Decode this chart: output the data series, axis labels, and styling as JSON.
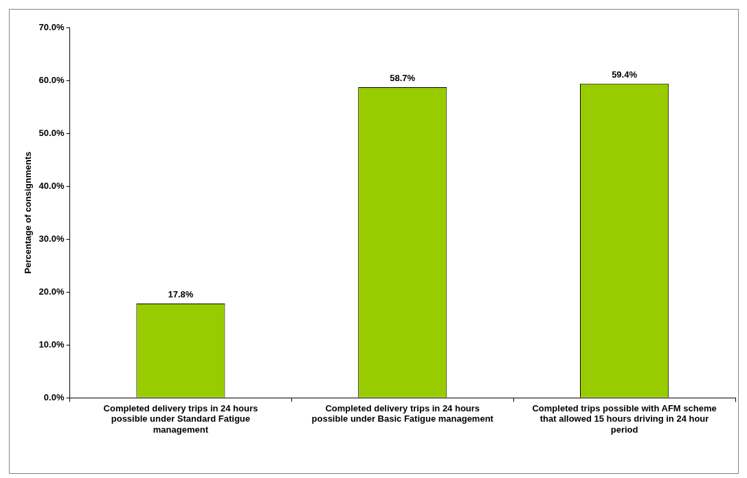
{
  "chart_data": {
    "type": "bar",
    "ylabel": "Percentage of consignments",
    "categories": [
      "Completed delivery trips in 24 hours possible under Standard Fatigue management",
      "Completed delivery trips in 24 hours possible under Basic Fatigue management",
      "Completed trips possible with AFM scheme that allowed 15 hours driving in 24 hour period"
    ],
    "values": [
      17.8,
      58.7,
      59.4
    ],
    "color": "#99cc00",
    "value_labels": [
      "17.8%",
      "58.7%",
      "59.4%"
    ],
    "ylim": [
      0,
      70
    ],
    "yticks": [
      {
        "value": 0,
        "label": "0.0%"
      },
      {
        "value": 10,
        "label": "10.0%"
      },
      {
        "value": 20,
        "label": "20.0%"
      },
      {
        "value": 30,
        "label": "30.0%"
      },
      {
        "value": 40,
        "label": "40.0%"
      },
      {
        "value": 50,
        "label": "50.0%"
      },
      {
        "value": 60,
        "label": "60.0%"
      },
      {
        "value": 70,
        "label": "70.0%"
      }
    ],
    "grid": false,
    "legend": false
  }
}
